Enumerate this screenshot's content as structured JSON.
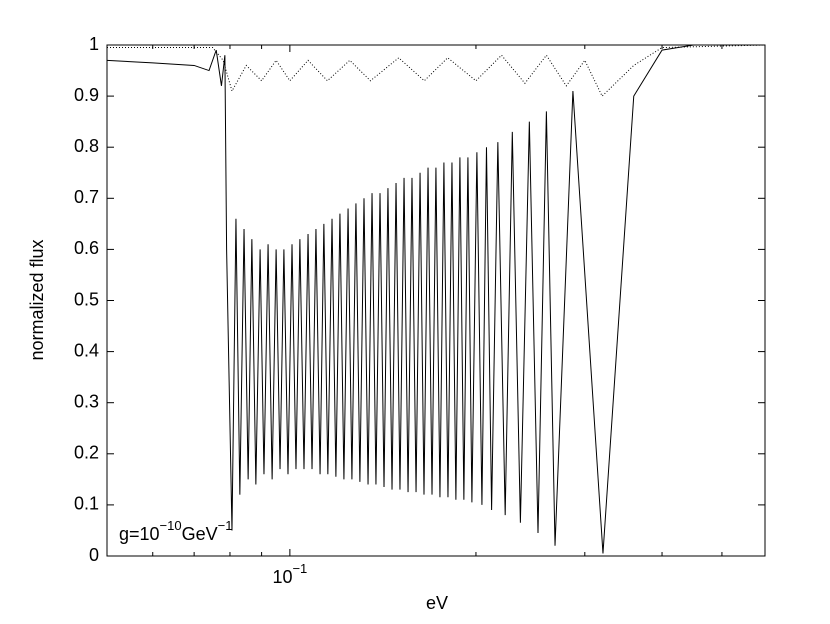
{
  "chart_data": {
    "type": "line",
    "xlabel": "eV",
    "ylabel": "normalized flux",
    "xscale": "log",
    "xlim": [
      0.0506,
      0.587
    ],
    "ylim": [
      0,
      1
    ],
    "xticks": [
      {
        "value": 0.1,
        "label": "10",
        "exponent": "−1"
      }
    ],
    "xminorticks": [
      0.06,
      0.07,
      0.08,
      0.09,
      0.2,
      0.3,
      0.4,
      0.5
    ],
    "yticks": [
      0,
      0.1,
      0.2,
      0.3,
      0.4,
      0.5,
      0.6,
      0.7,
      0.8,
      0.9,
      1
    ],
    "annotation": {
      "base": "g=10",
      "exp": "−10",
      "unit": "GeV",
      "unit_exp": "−1"
    },
    "series": [
      {
        "color": "#000000",
        "style": "solid",
        "x": [
          0.0506,
          0.06,
          0.07,
          0.074,
          0.076,
          0.0775,
          0.0785,
          0.079,
          0.0806,
          0.0818,
          0.083,
          0.0843,
          0.0856,
          0.0868,
          0.0881,
          0.0895,
          0.0908,
          0.0922,
          0.0936,
          0.095,
          0.0964,
          0.0978,
          0.0993,
          0.1008,
          0.1023,
          0.1038,
          0.1054,
          0.107,
          0.1086,
          0.1102,
          0.1119,
          0.1135,
          0.1152,
          0.117,
          0.1187,
          0.1205,
          0.1223,
          0.1242,
          0.126,
          0.1279,
          0.1298,
          0.1318,
          0.1338,
          0.1358,
          0.1378,
          0.1399,
          0.142,
          0.1441,
          0.1463,
          0.1485,
          0.1507,
          0.153,
          0.1553,
          0.1576,
          0.16,
          0.1624,
          0.1648,
          0.1673,
          0.1698,
          0.1723,
          0.1749,
          0.1775,
          0.1802,
          0.1829,
          0.1856,
          0.1884,
          0.1912,
          0.1941,
          0.197,
          0.2007,
          0.2045,
          0.208,
          0.212,
          0.217,
          0.223,
          0.229,
          0.236,
          0.244,
          0.252,
          0.26,
          0.2685,
          0.287,
          0.321,
          0.36,
          0.4,
          0.45,
          0.587
        ],
        "values": [
          0.97,
          0.965,
          0.96,
          0.95,
          0.99,
          0.92,
          0.98,
          0.6,
          0.05,
          0.66,
          0.12,
          0.64,
          0.15,
          0.62,
          0.14,
          0.6,
          0.16,
          0.61,
          0.15,
          0.6,
          0.17,
          0.6,
          0.16,
          0.61,
          0.17,
          0.62,
          0.17,
          0.63,
          0.17,
          0.64,
          0.16,
          0.65,
          0.16,
          0.66,
          0.155,
          0.67,
          0.15,
          0.68,
          0.15,
          0.69,
          0.145,
          0.7,
          0.14,
          0.71,
          0.14,
          0.71,
          0.135,
          0.72,
          0.13,
          0.73,
          0.13,
          0.74,
          0.125,
          0.74,
          0.125,
          0.75,
          0.12,
          0.76,
          0.12,
          0.76,
          0.115,
          0.77,
          0.115,
          0.77,
          0.11,
          0.78,
          0.11,
          0.78,
          0.105,
          0.79,
          0.1,
          0.8,
          0.09,
          0.81,
          0.08,
          0.83,
          0.065,
          0.85,
          0.045,
          0.87,
          0.02,
          0.91,
          0.005,
          0.9,
          0.99,
          1.0,
          1.0
        ]
      },
      {
        "color": "#000000",
        "style": "dotted",
        "x": [
          0.0506,
          0.075,
          0.078,
          0.0806,
          0.085,
          0.09,
          0.095,
          0.1,
          0.107,
          0.115,
          0.125,
          0.135,
          0.15,
          0.165,
          0.18,
          0.2,
          0.22,
          0.24,
          0.26,
          0.28,
          0.3,
          0.32,
          0.36,
          0.4,
          0.587
        ],
        "values": [
          0.995,
          0.995,
          0.97,
          0.91,
          0.96,
          0.93,
          0.97,
          0.93,
          0.97,
          0.93,
          0.97,
          0.93,
          0.975,
          0.93,
          0.975,
          0.93,
          0.98,
          0.925,
          0.98,
          0.92,
          0.97,
          0.9,
          0.96,
          0.995,
          1.0
        ]
      }
    ]
  }
}
